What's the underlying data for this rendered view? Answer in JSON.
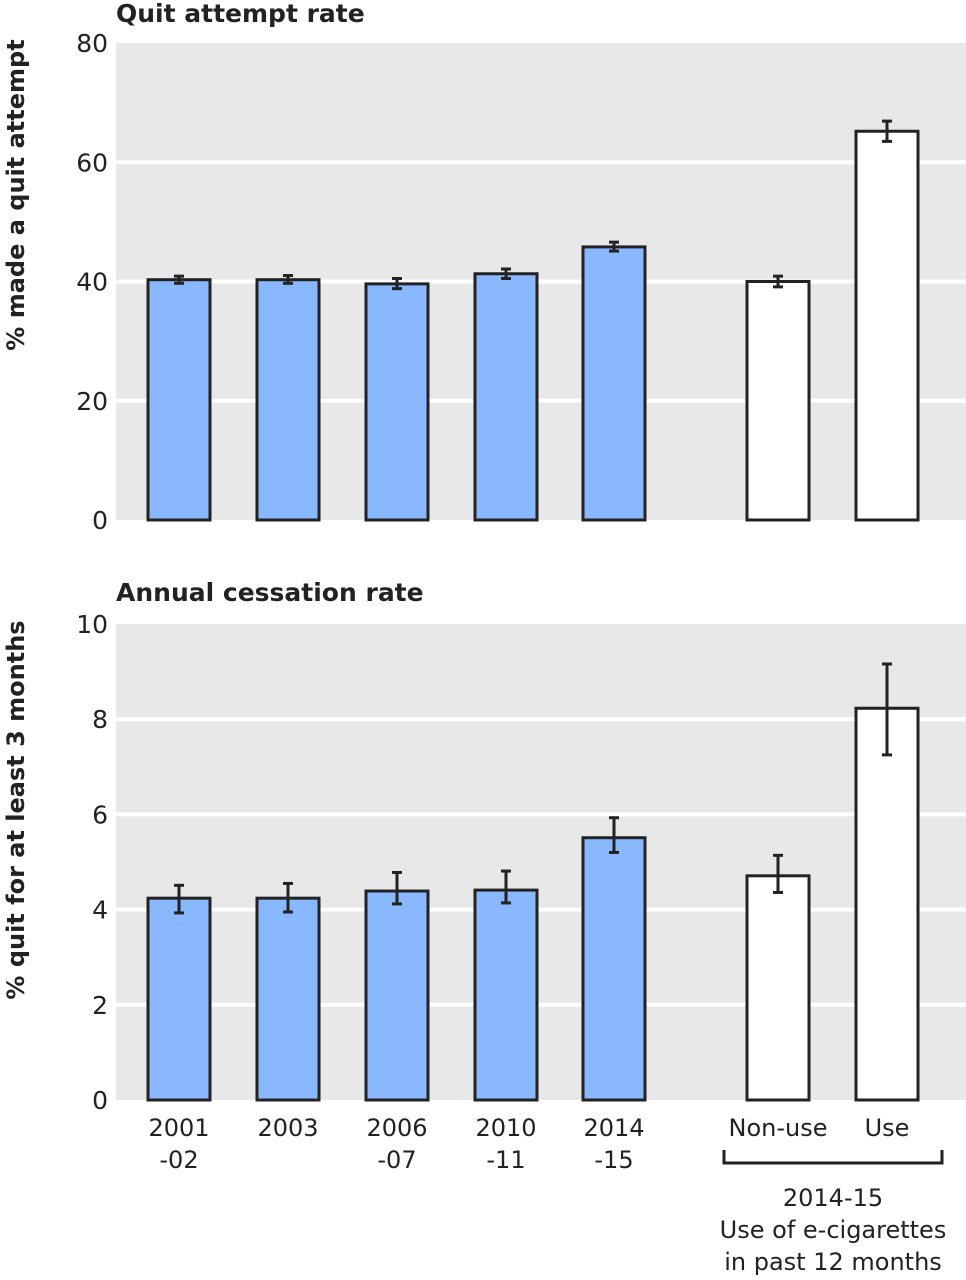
{
  "chart_data": [
    {
      "type": "bar",
      "title": "Quit attempt rate",
      "ylabel": "% made a quit attempt",
      "xlabel": "",
      "ylim": [
        0,
        80
      ],
      "yticks": [
        0,
        20,
        40,
        60,
        80
      ],
      "grid": true,
      "categories": [
        "2001-02",
        "2003",
        "2006-07",
        "2010-11",
        "2014-15",
        "Non-use",
        "Use"
      ],
      "values": [
        40.3,
        40.3,
        39.6,
        41.3,
        45.8,
        40.0,
        65.2
      ],
      "error_low": [
        39.7,
        39.7,
        38.8,
        40.5,
        45.1,
        39.1,
        63.5
      ],
      "error_high": [
        40.9,
        41.0,
        40.5,
        42.1,
        46.6,
        40.9,
        66.9
      ],
      "bar_colors": [
        "#8ab8ff",
        "#8ab8ff",
        "#8ab8ff",
        "#8ab8ff",
        "#8ab8ff",
        "#ffffff",
        "#ffffff"
      ]
    },
    {
      "type": "bar",
      "title": "Annual cessation rate",
      "ylabel": "% quit for at least 3 months",
      "xlabel": "",
      "ylim": [
        0,
        10
      ],
      "yticks": [
        0,
        2,
        4,
        6,
        8,
        10
      ],
      "grid": true,
      "categories": [
        "2001-02",
        "2003",
        "2006-07",
        "2010-11",
        "2014-15",
        "Non-use",
        "Use"
      ],
      "values": [
        4.24,
        4.24,
        4.39,
        4.41,
        5.51,
        4.71,
        8.23
      ],
      "error_low": [
        3.93,
        3.95,
        4.12,
        4.14,
        5.2,
        4.36,
        7.25
      ],
      "error_high": [
        4.51,
        4.55,
        4.78,
        4.81,
        5.93,
        5.14,
        9.16
      ],
      "bar_colors": [
        "#8ab8ff",
        "#8ab8ff",
        "#8ab8ff",
        "#8ab8ff",
        "#8ab8ff",
        "#ffffff",
        "#ffffff"
      ]
    }
  ],
  "x_axis": {
    "category_labels": [
      [
        "2001",
        "-02"
      ],
      [
        "2003"
      ],
      [
        "2006",
        "-07"
      ],
      [
        "2010",
        "-11"
      ],
      [
        "2014",
        "-15"
      ],
      [
        "Non-use"
      ],
      [
        "Use"
      ]
    ],
    "group_label_lines": [
      "2014-15",
      "Use of e-cigarettes",
      "in past 12 months"
    ]
  },
  "colors": {
    "plot_background": "#e8e8e8",
    "gridline": "#ffffff",
    "bar_outline": "#222222",
    "blue_bar": "#8ab8ff",
    "white_bar": "#ffffff"
  }
}
